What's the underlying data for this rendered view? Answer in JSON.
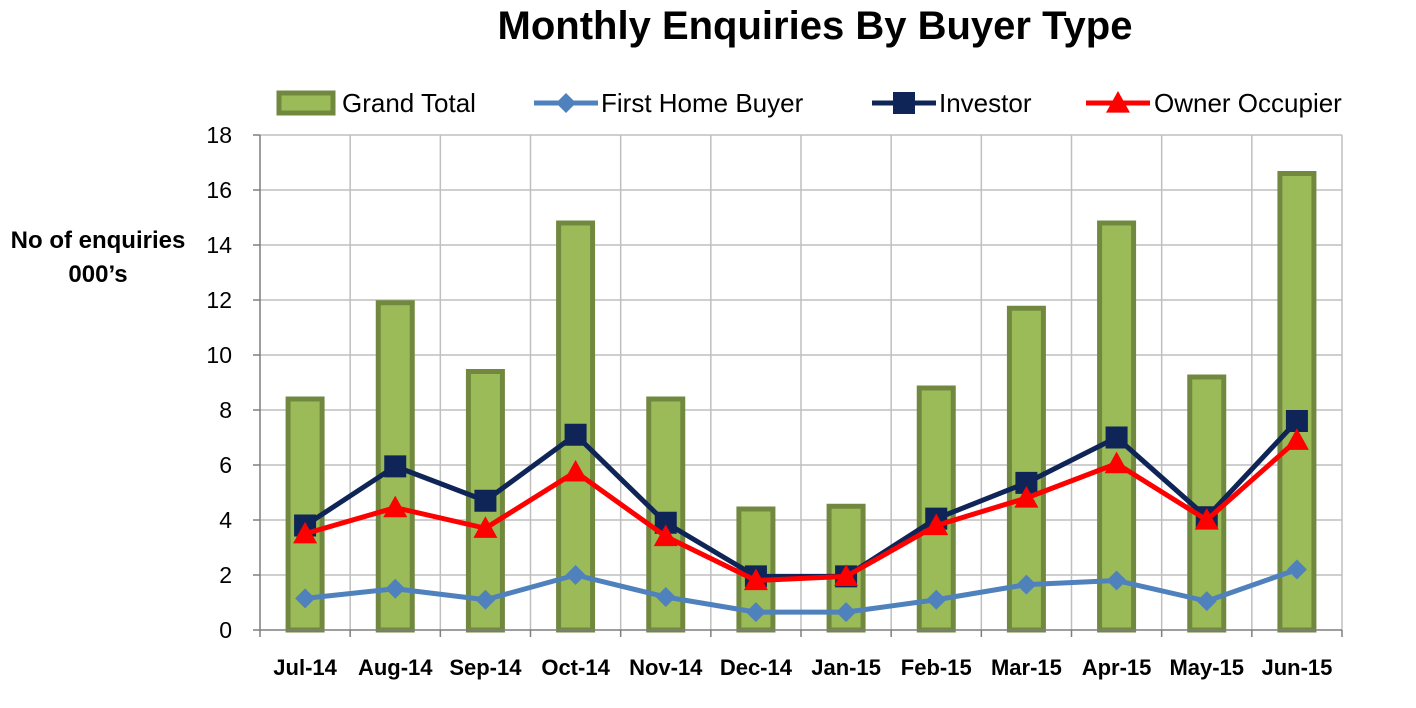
{
  "chart_data": {
    "type": "bar",
    "title": "Monthly Enquiries By Buyer Type",
    "ylabel": "No of enquiries 000’s",
    "xlabel": "",
    "ylim": [
      0,
      18
    ],
    "yticks": [
      0,
      2,
      4,
      6,
      8,
      10,
      12,
      14,
      16,
      18
    ],
    "grid": true,
    "legend_position": "top",
    "categories": [
      "Jul-14",
      "Aug-14",
      "Sep-14",
      "Oct-14",
      "Nov-14",
      "Dec-14",
      "Jan-15",
      "Feb-15",
      "Mar-15",
      "Apr-15",
      "May-15",
      "Jun-15"
    ],
    "series": [
      {
        "name": "Grand Total",
        "type": "bar",
        "color": "#9BBB59",
        "edge_color": "#71893F",
        "values": [
          8.4,
          11.9,
          9.4,
          14.8,
          8.4,
          4.4,
          4.5,
          8.8,
          11.7,
          14.8,
          9.2,
          16.6
        ]
      },
      {
        "name": "First Home Buyer",
        "type": "line",
        "marker": "diamond",
        "color": "#4F81BD",
        "values": [
          1.15,
          1.5,
          1.1,
          2.0,
          1.2,
          0.65,
          0.65,
          1.1,
          1.65,
          1.8,
          1.05,
          2.2
        ]
      },
      {
        "name": "Investor",
        "type": "line",
        "marker": "square",
        "color": "#0F2557",
        "values": [
          3.8,
          5.95,
          4.7,
          7.1,
          3.9,
          1.95,
          1.95,
          4.05,
          5.35,
          7.0,
          4.1,
          7.6
        ]
      },
      {
        "name": "Owner Occupier",
        "type": "line",
        "marker": "triangle",
        "color": "#FF0000",
        "values": [
          3.5,
          4.45,
          3.7,
          5.75,
          3.4,
          1.8,
          1.95,
          3.8,
          4.8,
          6.05,
          4.0,
          6.9
        ]
      }
    ]
  }
}
